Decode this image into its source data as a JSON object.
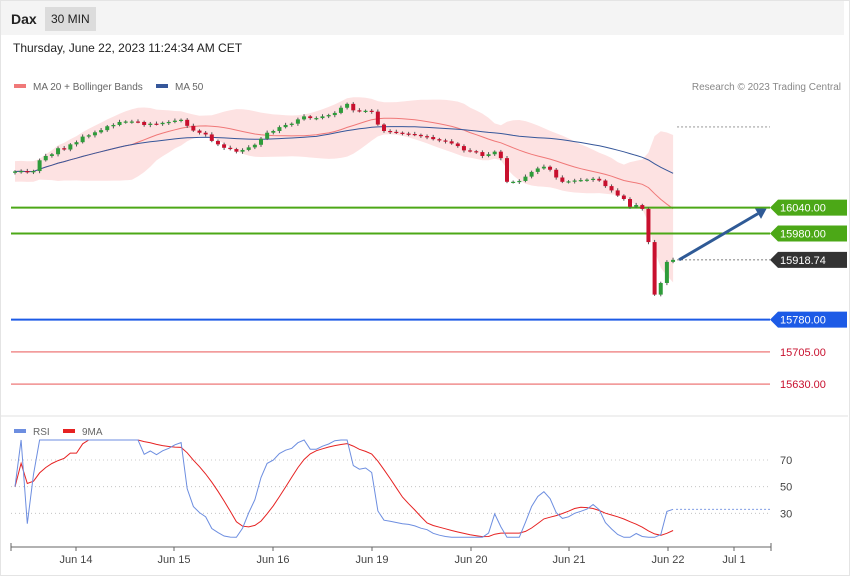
{
  "header": {
    "symbol": "Dax",
    "interval": "30 MIN"
  },
  "timestamp": "Thursday, June 22, 2023 11:24:34 AM CET",
  "copyright": "Research © 2023 Trading Central",
  "colors": {
    "bull": "#2e9c3a",
    "bear": "#c8102e",
    "bb_fill": "#fde2e2",
    "ma20": "#f07878",
    "ma50": "#36579a",
    "support_green": "#4ca817",
    "support_blue": "#1d5be6",
    "resistance_red": "#f08e8e",
    "arrow": "#2f5a96",
    "rsi": "#6d8ee0",
    "rsi_ma": "#e62222"
  },
  "chart_data": [
    {
      "type": "candlestick",
      "legend": [
        {
          "label": "MA 20 + Bollinger Bands",
          "color": "#f07878"
        },
        {
          "label": "MA 50",
          "color": "#36579a"
        }
      ],
      "x_ticks": [
        "Jun 14",
        "Jun 15",
        "Jun 16",
        "Jun 19",
        "Jun 20",
        "Jun 21",
        "Jun 22",
        "Jul 1"
      ],
      "ylim": [
        15570,
        16290
      ],
      "levels": [
        {
          "value": 16040.0,
          "label": "16040.00",
          "kind": "resistance-green"
        },
        {
          "value": 15980.0,
          "label": "15980.00",
          "kind": "resistance-green"
        },
        {
          "value": 15918.74,
          "label": "15918.74",
          "kind": "last-price"
        },
        {
          "value": 15780.0,
          "label": "15780.00",
          "kind": "support-blue"
        },
        {
          "value": 15705.0,
          "label": "15705.00",
          "kind": "support-red"
        },
        {
          "value": 15630.0,
          "label": "15630.00",
          "kind": "support-red"
        }
      ],
      "forecast": {
        "from": 15918.74,
        "to": 16040.0
      },
      "closes": [
        16124,
        16125,
        16122,
        16125,
        16150,
        16160,
        16164,
        16178,
        16175,
        16187,
        16192,
        16205,
        16208,
        16215,
        16220,
        16229,
        16232,
        16239,
        16240,
        16240,
        16239,
        16232,
        16235,
        16234,
        16237,
        16239,
        16242,
        16244,
        16230,
        16219,
        16214,
        16210,
        16195,
        16187,
        16179,
        16176,
        16170,
        16174,
        16180,
        16186,
        16200,
        16214,
        16218,
        16227,
        16232,
        16235,
        16245,
        16252,
        16248,
        16248,
        16252,
        16255,
        16260,
        16272,
        16281,
        16266,
        16264,
        16265,
        16263,
        16233,
        16218,
        16216,
        16214,
        16212,
        16211,
        16209,
        16206,
        16204,
        16199,
        16196,
        16194,
        16189,
        16183,
        16173,
        16171,
        16169,
        16160,
        16164,
        16170,
        16155,
        16100,
        16100,
        16102,
        16112,
        16123,
        16131,
        16135,
        16128,
        16110,
        16100,
        16101,
        16103,
        16104,
        16105,
        16107,
        16103,
        16090,
        16080,
        16068,
        16060,
        16042,
        16046,
        16037,
        15960,
        15838,
        15865,
        15914,
        15918.74
      ]
    },
    {
      "type": "line",
      "legend": [
        {
          "label": "RSI",
          "color": "#6d8ee0"
        },
        {
          "label": "9MA",
          "color": "#e62222"
        }
      ],
      "y_ticks": [
        70,
        50,
        30
      ],
      "ylim": [
        10,
        85
      ],
      "last_rsi": 33
    }
  ]
}
